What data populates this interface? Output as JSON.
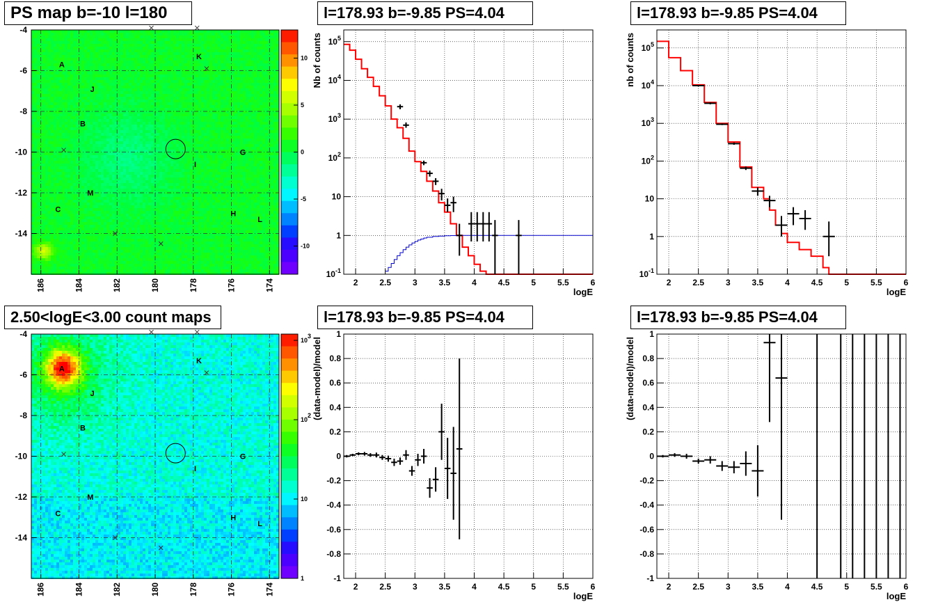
{
  "map_labels": {
    "points": [
      "A",
      "B",
      "C",
      "G",
      "H",
      "I",
      "J",
      "K",
      "L",
      "M"
    ]
  },
  "chart_data": [
    {
      "type": "heatmap",
      "title": "PS map b=-10 l=180",
      "xlabel": "",
      "ylabel": "",
      "xlim": [
        186.5,
        173.5
      ],
      "ylim": [
        -16,
        -4
      ],
      "x_ticks": [
        "186",
        "184",
        "182",
        "180",
        "178",
        "176",
        "174"
      ],
      "y_ticks": [
        "-4",
        "-6",
        "-8",
        "-10",
        "-12",
        "-14"
      ],
      "colorbar": {
        "scale": "linear",
        "range": [
          -13,
          13
        ],
        "ticks": [
          "10",
          "5",
          "0",
          "-5",
          "-10"
        ]
      },
      "grid": true,
      "circle": {
        "l": 178.93,
        "b": -9.85
      }
    },
    {
      "type": "line",
      "title": "l=178.93 b=-9.85 PS=4.04",
      "xlabel": "logE",
      "ylabel": "Nb of counts",
      "xlim": [
        1.8,
        6
      ],
      "ylim": [
        0.1,
        200000
      ],
      "yscale": "log",
      "x_ticks": [
        "2",
        "2.5",
        "3",
        "3.5",
        "4",
        "4.5",
        "5",
        "5.5",
        "6"
      ],
      "y_ticks": [
        "10^-1",
        "1",
        "10",
        "10^2",
        "10^3",
        "10^4",
        "10^5"
      ],
      "grid": true,
      "series": [
        {
          "kind": "step",
          "color": "#ff0000",
          "edges": [
            1.8,
            1.9,
            2.0,
            2.1,
            2.2,
            2.3,
            2.4,
            2.5,
            2.6,
            2.7,
            2.8,
            2.9,
            3.0,
            3.1,
            3.2,
            3.3,
            3.4,
            3.5,
            3.6,
            3.7,
            3.8,
            3.9,
            4.0,
            4.1,
            4.2,
            4.3,
            4.4,
            6.0
          ],
          "values": [
            85000,
            60000,
            35000,
            20000,
            12000,
            7000,
            4000,
            2200,
            1000,
            600,
            320,
            150,
            80,
            45,
            25,
            14,
            7,
            4,
            2,
            1,
            0.5,
            0.3,
            0.18,
            0.12,
            0.1,
            0.1,
            0.1
          ]
        },
        {
          "kind": "step",
          "color": "#0000cc",
          "edges": [
            2.5,
            2.55,
            2.6,
            2.65,
            2.7,
            2.75,
            2.8,
            2.85,
            2.9,
            2.95,
            3.0,
            3.05,
            3.1,
            3.15,
            3.2,
            3.3,
            3.4,
            3.5,
            3.6,
            3.7,
            6.0
          ],
          "values": [
            0.12,
            0.15,
            0.19,
            0.24,
            0.3,
            0.36,
            0.43,
            0.5,
            0.57,
            0.64,
            0.7,
            0.76,
            0.81,
            0.86,
            0.9,
            0.94,
            0.96,
            0.98,
            0.99,
            1.0
          ]
        },
        {
          "kind": "errorbars",
          "color": "#000000",
          "points": [
            {
              "x": 2.75,
              "y": 2100,
              "lo": 1800,
              "hi": 2400,
              "xerr": 0.05
            },
            {
              "x": 2.85,
              "y": 700,
              "lo": 600,
              "hi": 820,
              "xerr": 0.05
            },
            {
              "x": 3.15,
              "y": 75,
              "lo": 65,
              "hi": 85,
              "xerr": 0.05
            },
            {
              "x": 3.25,
              "y": 40,
              "lo": 33,
              "hi": 47,
              "xerr": 0.05
            },
            {
              "x": 3.35,
              "y": 25,
              "lo": 20,
              "hi": 30,
              "xerr": 0.05
            },
            {
              "x": 3.45,
              "y": 12,
              "lo": 8,
              "hi": 16,
              "xerr": 0.05
            },
            {
              "x": 3.55,
              "y": 6,
              "lo": 4,
              "hi": 9,
              "xerr": 0.05
            },
            {
              "x": 3.65,
              "y": 7,
              "lo": 4,
              "hi": 10,
              "xerr": 0.05
            },
            {
              "x": 3.75,
              "y": 1,
              "lo": 0.3,
              "hi": 2,
              "xerr": 0.05
            },
            {
              "x": 3.95,
              "y": 2,
              "lo": 0.7,
              "hi": 4,
              "xerr": 0.05
            },
            {
              "x": 4.05,
              "y": 2,
              "lo": 0.7,
              "hi": 4,
              "xerr": 0.05
            },
            {
              "x": 4.15,
              "y": 2,
              "lo": 0.7,
              "hi": 4,
              "xerr": 0.05
            },
            {
              "x": 4.25,
              "y": 2,
              "lo": 0.7,
              "hi": 4,
              "xerr": 0.05
            },
            {
              "x": 4.35,
              "y": 1,
              "lo": 0.1,
              "hi": 2.5,
              "xerr": 0.05
            },
            {
              "x": 4.75,
              "y": 1,
              "lo": 0.1,
              "hi": 2.5,
              "xerr": 0.05
            }
          ]
        }
      ]
    },
    {
      "type": "line",
      "title": "l=178.93 b=-9.85 PS=4.04",
      "xlabel": "logE",
      "ylabel": "nb of counts",
      "xlim": [
        1.8,
        6
      ],
      "ylim": [
        0.1,
        300000
      ],
      "yscale": "log",
      "x_ticks": [
        "2",
        "2.5",
        "3",
        "3.5",
        "4",
        "4.5",
        "5",
        "5.5",
        "6"
      ],
      "y_ticks": [
        "10^-1",
        "1",
        "10",
        "10^2",
        "10^3",
        "10^4",
        "10^5"
      ],
      "grid": true,
      "series": [
        {
          "kind": "step",
          "color": "#ff0000",
          "edges": [
            1.8,
            2.0,
            2.2,
            2.4,
            2.6,
            2.8,
            3.0,
            3.2,
            3.4,
            3.6,
            3.7,
            3.8,
            3.9,
            4.0,
            4.2,
            4.4,
            4.6,
            4.7,
            6.0
          ],
          "values": [
            150000,
            55000,
            25000,
            10500,
            3600,
            1000,
            320,
            70,
            20,
            10,
            5,
            2,
            1.2,
            0.7,
            0.45,
            0.3,
            0.15,
            0.1
          ]
        },
        {
          "kind": "errorbars",
          "color": "#000000",
          "points": [
            {
              "x": 2.5,
              "y": 10000,
              "lo": 9500,
              "hi": 10500,
              "xerr": 0.1
            },
            {
              "x": 2.7,
              "y": 3400,
              "lo": 3200,
              "hi": 3600,
              "xerr": 0.1
            },
            {
              "x": 2.9,
              "y": 950,
              "lo": 900,
              "hi": 1000,
              "xerr": 0.1
            },
            {
              "x": 3.1,
              "y": 290,
              "lo": 270,
              "hi": 310,
              "xerr": 0.1
            },
            {
              "x": 3.3,
              "y": 65,
              "lo": 58,
              "hi": 72,
              "xerr": 0.1
            },
            {
              "x": 3.5,
              "y": 16,
              "lo": 12,
              "hi": 20,
              "xerr": 0.1
            },
            {
              "x": 3.7,
              "y": 9,
              "lo": 6,
              "hi": 12,
              "xerr": 0.1
            },
            {
              "x": 3.9,
              "y": 2,
              "lo": 1,
              "hi": 3.5,
              "xerr": 0.1
            },
            {
              "x": 4.1,
              "y": 4,
              "lo": 2,
              "hi": 6,
              "xerr": 0.1
            },
            {
              "x": 4.3,
              "y": 3,
              "lo": 1.5,
              "hi": 5,
              "xerr": 0.1
            },
            {
              "x": 4.7,
              "y": 1,
              "lo": 0.3,
              "hi": 2.5,
              "xerr": 0.1
            }
          ]
        }
      ]
    },
    {
      "type": "heatmap",
      "title": "2.50<logE<3.00 count maps",
      "xlabel": "",
      "ylabel": "",
      "xlim": [
        186.5,
        173.5
      ],
      "ylim": [
        -16,
        -4
      ],
      "x_ticks": [
        "186",
        "184",
        "182",
        "180",
        "178",
        "176",
        "174"
      ],
      "y_ticks": [
        "-4",
        "-6",
        "-8",
        "-10",
        "-12",
        "-14"
      ],
      "colorbar": {
        "scale": "log",
        "range": [
          1,
          1200
        ],
        "ticks": [
          "10^3",
          "10^2",
          "10",
          "1"
        ]
      },
      "grid": true,
      "hotspot": {
        "label": "A",
        "l": 184.9,
        "b": -5.6
      },
      "circle": {
        "l": 178.93,
        "b": -9.85
      }
    },
    {
      "type": "scatter",
      "title": "l=178.93 b=-9.85 PS=4.04",
      "xlabel": "logE",
      "ylabel": "(data-model)/model",
      "xlim": [
        1.8,
        6
      ],
      "ylim": [
        -1,
        1
      ],
      "x_ticks": [
        "2",
        "2.5",
        "3",
        "3.5",
        "4",
        "4.5",
        "5",
        "5.5",
        "6"
      ],
      "y_ticks": [
        "-1",
        "-0.8",
        "-0.6",
        "-0.4",
        "-0.2",
        "0",
        "0.2",
        "0.4",
        "0.6",
        "0.8",
        "1"
      ],
      "grid": true,
      "points": [
        {
          "x": 1.85,
          "y": 0.0,
          "err": 0.01,
          "xerr": 0.05
        },
        {
          "x": 1.95,
          "y": 0.01,
          "err": 0.01,
          "xerr": 0.05
        },
        {
          "x": 2.05,
          "y": 0.02,
          "err": 0.012,
          "xerr": 0.05
        },
        {
          "x": 2.15,
          "y": 0.02,
          "err": 0.015,
          "xerr": 0.05
        },
        {
          "x": 2.25,
          "y": 0.01,
          "err": 0.015,
          "xerr": 0.05
        },
        {
          "x": 2.35,
          "y": 0.01,
          "err": 0.02,
          "xerr": 0.05
        },
        {
          "x": 2.45,
          "y": -0.01,
          "err": 0.02,
          "xerr": 0.05
        },
        {
          "x": 2.55,
          "y": -0.02,
          "err": 0.025,
          "xerr": 0.05
        },
        {
          "x": 2.65,
          "y": -0.05,
          "err": 0.03,
          "xerr": 0.05
        },
        {
          "x": 2.75,
          "y": -0.04,
          "err": 0.03,
          "xerr": 0.05
        },
        {
          "x": 2.85,
          "y": 0.01,
          "err": 0.04,
          "xerr": 0.05
        },
        {
          "x": 2.95,
          "y": -0.12,
          "err": 0.04,
          "xerr": 0.05
        },
        {
          "x": 3.05,
          "y": -0.03,
          "err": 0.05,
          "xerr": 0.05
        },
        {
          "x": 3.15,
          "y": 0.0,
          "err": 0.06,
          "xerr": 0.05
        },
        {
          "x": 3.25,
          "y": -0.26,
          "err": 0.08,
          "xerr": 0.05
        },
        {
          "x": 3.35,
          "y": -0.19,
          "err": 0.1,
          "xerr": 0.05
        },
        {
          "x": 3.45,
          "y": 0.2,
          "err": 0.23,
          "xerr": 0.05
        },
        {
          "x": 3.55,
          "y": -0.1,
          "err": 0.25,
          "xerr": 0.05
        },
        {
          "x": 3.65,
          "y": -0.14,
          "err": 0.38,
          "xerr": 0.05
        },
        {
          "x": 3.75,
          "y": 0.06,
          "err": 0.74,
          "xerr": 0.05
        }
      ]
    },
    {
      "type": "scatter",
      "title": "l=178.93 b=-9.85 PS=4.04",
      "xlabel": "logE",
      "ylabel": "(data-model)/model",
      "xlim": [
        1.8,
        6
      ],
      "ylim": [
        -1,
        1
      ],
      "x_ticks": [
        "2",
        "2.5",
        "3",
        "3.5",
        "4",
        "4.5",
        "5",
        "5.5",
        "6"
      ],
      "y_ticks": [
        "-1",
        "-0.8",
        "-0.6",
        "-0.4",
        "-0.2",
        "0",
        "0.2",
        "0.4",
        "0.6",
        "0.8",
        "1"
      ],
      "grid": true,
      "points": [
        {
          "x": 1.9,
          "y": 0.0,
          "err": 0.01,
          "xerr": 0.1
        },
        {
          "x": 2.1,
          "y": 0.01,
          "err": 0.015,
          "xerr": 0.1
        },
        {
          "x": 2.3,
          "y": 0.0,
          "err": 0.02,
          "xerr": 0.1
        },
        {
          "x": 2.5,
          "y": -0.04,
          "err": 0.02,
          "xerr": 0.1
        },
        {
          "x": 2.7,
          "y": -0.03,
          "err": 0.03,
          "xerr": 0.1
        },
        {
          "x": 2.9,
          "y": -0.08,
          "err": 0.04,
          "xerr": 0.1
        },
        {
          "x": 3.1,
          "y": -0.09,
          "err": 0.05,
          "xerr": 0.1
        },
        {
          "x": 3.3,
          "y": -0.06,
          "err": 0.1,
          "xerr": 0.1
        },
        {
          "x": 3.5,
          "y": -0.12,
          "err": 0.21,
          "xerr": 0.1
        },
        {
          "x": 3.7,
          "y": 0.93,
          "err": 0.65,
          "xerr": 0.1
        },
        {
          "x": 3.9,
          "y": 0.64,
          "err": 1.16,
          "xerr": 0.1
        },
        {
          "x": 4.5,
          "y": 1.0,
          "err": 2.0,
          "xerr": 0.0
        },
        {
          "x": 4.9,
          "y": 1.0,
          "err": 2.0,
          "xerr": 0.0
        },
        {
          "x": 5.1,
          "y": 1.0,
          "err": 2.0,
          "xerr": 0.0
        },
        {
          "x": 5.3,
          "y": 1.0,
          "err": 2.0,
          "xerr": 0.0
        },
        {
          "x": 5.5,
          "y": 1.0,
          "err": 2.0,
          "xerr": 0.0
        },
        {
          "x": 5.7,
          "y": 1.0,
          "err": 2.0,
          "xerr": 0.0
        },
        {
          "x": 5.9,
          "y": 1.0,
          "err": 2.0,
          "xerr": 0.0
        }
      ]
    }
  ]
}
